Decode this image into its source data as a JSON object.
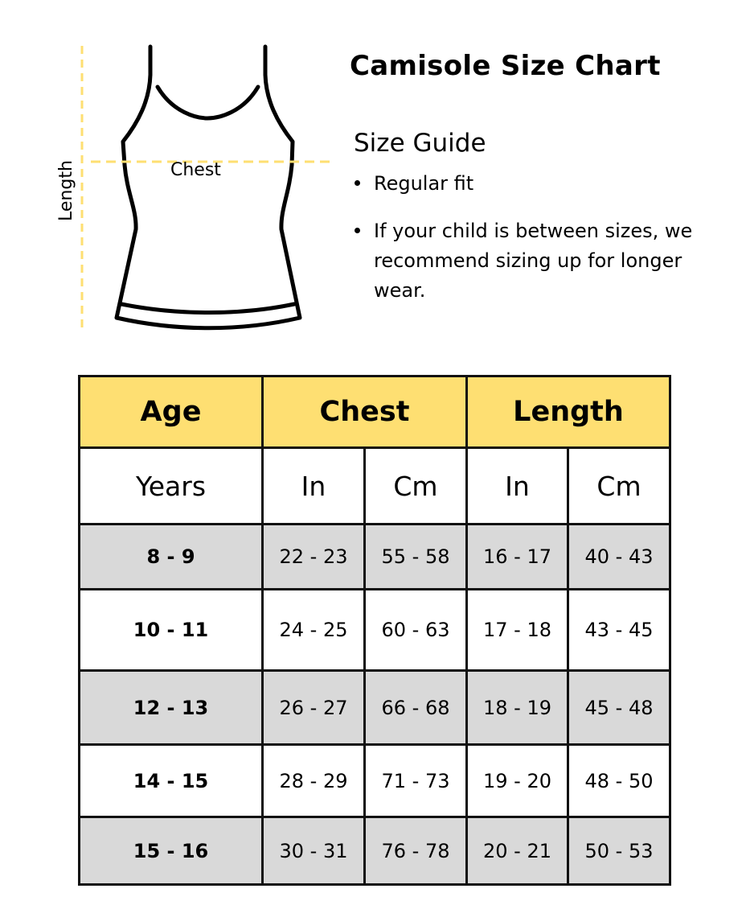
{
  "title": "Camisole Size Chart",
  "guide": {
    "heading": "Size Guide",
    "bullets": [
      "Regular fit",
      "If your child is between sizes, we recommend sizing up for longer wear."
    ]
  },
  "diagram": {
    "length_label": "Length",
    "chest_label": "Chest",
    "measure_line_color": "#fedf72"
  },
  "table": {
    "header_color": "#fedf72",
    "shaded_row_color": "#d9d9d9",
    "groups": [
      "Age",
      "Chest",
      "Length"
    ],
    "subheaders": [
      "Years",
      "In",
      "Cm",
      "In",
      "Cm"
    ],
    "rows": [
      [
        "8 - 9",
        "22 - 23",
        "55 - 58",
        "16 - 17",
        "40 - 43"
      ],
      [
        "10 - 11",
        "24 - 25",
        "60 - 63",
        "17 - 18",
        "43 - 45"
      ],
      [
        "12 - 13",
        "26 - 27",
        "66 - 68",
        "18 - 19",
        "45 - 48"
      ],
      [
        "14 - 15",
        "28 - 29",
        "71 - 73",
        "19 - 20",
        "48 - 50"
      ],
      [
        "15 - 16",
        "30 - 31",
        "76 - 78",
        "20 - 21",
        "50 - 53"
      ]
    ]
  }
}
